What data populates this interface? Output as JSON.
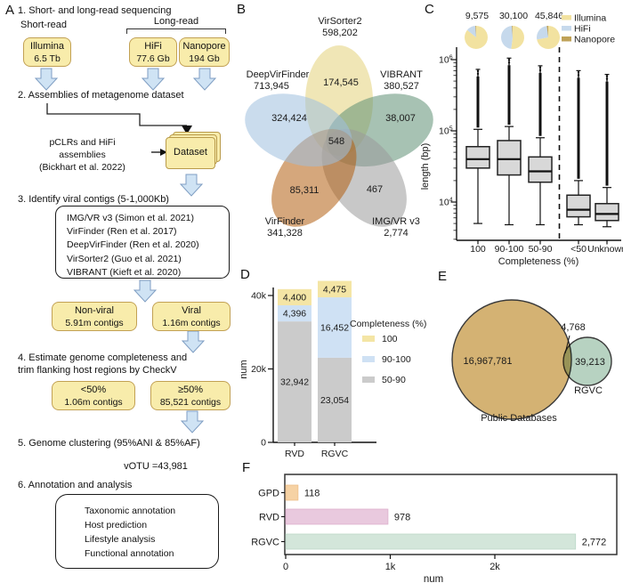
{
  "panels": {
    "A": {
      "label": "A",
      "step1": {
        "title": "1. Short- and long-read sequencing",
        "short_label": "Short-read",
        "long_label": "Long-read",
        "boxes": [
          {
            "name": "Illumina",
            "value": "6.5 Tb"
          },
          {
            "name": "HiFi",
            "value": "77.6 Gb"
          },
          {
            "name": "Nanopore",
            "value": "194 Gb"
          }
        ]
      },
      "step2": {
        "title": "2. Assemblies of metagenome dataset",
        "note_line1": "pCLRs and HiFi",
        "note_line2": "assemblies",
        "note_line3": "(Bickhart et al. 2022)",
        "dataset_label": "Dataset"
      },
      "step3": {
        "title": "3. Identify viral contigs (5-1,000Kb)",
        "tools": [
          "IMG/VR v3 (Simon et al. 2021)",
          "VirFinder (Ren et al. 2017)",
          "DeepVirFinder (Ren et al. 2020)",
          "VirSorter2 (Guo et al. 2021)",
          "VIBRANT (Kieft et al. 2020)"
        ],
        "nonviral_name": "Non-viral",
        "nonviral_count": "5.91m contigs",
        "viral_name": "Viral",
        "viral_count": "1.16m contigs"
      },
      "step4": {
        "line1": "4. Estimate genome completeness and",
        "line2": "trim flanking host regions by CheckV",
        "lt50_name": "<50%",
        "lt50_count": "1.06m contigs",
        "ge50_name": "≥50%",
        "ge50_count": "85,521 contigs"
      },
      "step5": {
        "title": "5. Genome clustering (95%ANI & 85%AF)",
        "votu": "vOTU =43,981"
      },
      "step6": {
        "title": "6. Annotation and analysis",
        "items": [
          "Taxonomic annotation",
          "Host prediction",
          "Lifestyle analysis",
          "Functional annotation"
        ]
      }
    },
    "B": {
      "label": "B"
    },
    "C": {
      "label": "C"
    },
    "D": {
      "label": "D"
    },
    "E": {
      "label": "E"
    },
    "F": {
      "label": "F"
    }
  },
  "chart_data": [
    {
      "id": "B",
      "type": "venn5",
      "sets": [
        {
          "name": "VirSorter2",
          "total": "598,202",
          "color": "#e3d27a"
        },
        {
          "name": "VIBRANT",
          "total": "380,527",
          "color": "#5f8f74"
        },
        {
          "name": "IMG/VR v3",
          "total": "2,774",
          "color": "#9a9a9a"
        },
        {
          "name": "VirFinder",
          "total": "341,328",
          "color": "#b35f10"
        },
        {
          "name": "DeepVirFinder",
          "total": "713,945",
          "color": "#9fc0de"
        }
      ],
      "regions": [
        {
          "region": "VirSorter2",
          "value": "174,545"
        },
        {
          "region": "DeepVirFinder",
          "value": "324,424"
        },
        {
          "region": "VIBRANT",
          "value": "38,007"
        },
        {
          "region": "center-all",
          "value": "548"
        },
        {
          "region": "VirFinder",
          "value": "85,311"
        },
        {
          "region": "IMG/VR v3",
          "value": "467"
        }
      ]
    },
    {
      "id": "C",
      "type": "boxplot",
      "ylabel": "length (bp)",
      "xlabel": "Completeness (%)",
      "yscale": "log",
      "ylim": [
        3000,
        1400000
      ],
      "categories": [
        "100",
        "90-100",
        "50-90",
        "<50",
        "Unknown"
      ],
      "separator_after_index": 2,
      "pie_series": [
        "Illumina",
        "HiFi",
        "Nanopore"
      ],
      "pies": [
        {
          "count": "9,575",
          "fractions": [
            0.86,
            0.13,
            0.01
          ]
        },
        {
          "count": "30,100",
          "fractions": [
            0.52,
            0.47,
            0.01
          ]
        },
        {
          "count": "45,846",
          "fractions": [
            0.72,
            0.26,
            0.02
          ]
        }
      ],
      "legend": [
        {
          "label": "Illumina",
          "color": "#f2e2a0"
        },
        {
          "label": "HiFi",
          "color": "#c6d9ec"
        },
        {
          "label": "Nanopore",
          "color": "#bfa258"
        }
      ],
      "yticks": [
        {
          "base": "10",
          "exp": "4",
          "value": 10000
        },
        {
          "base": "10",
          "exp": "5",
          "value": 100000
        },
        {
          "base": "10",
          "exp": "6",
          "value": 1000000
        }
      ],
      "boxes": [
        {
          "category": "100",
          "whisker_low": 5000,
          "q1": 30000,
          "median": 40000,
          "q3": 60000,
          "whisker_high": 105000,
          "outlier_max": 730000
        },
        {
          "category": "90-100",
          "whisker_low": 4800,
          "q1": 24000,
          "median": 40000,
          "q3": 73000,
          "whisker_high": 115000,
          "outlier_max": 1050000
        },
        {
          "category": "50-90",
          "whisker_low": 4800,
          "q1": 19000,
          "median": 27000,
          "q3": 43000,
          "whisker_high": 80000,
          "outlier_max": 820000
        },
        {
          "category": "<50",
          "whisker_low": 4800,
          "q1": 6200,
          "median": 7800,
          "q3": 12500,
          "whisker_high": 20000,
          "outlier_max": 700000
        },
        {
          "category": "Unknown",
          "whisker_low": 4500,
          "q1": 5500,
          "median": 6800,
          "q3": 9500,
          "whisker_high": 16000,
          "outlier_max": 620000
        }
      ]
    },
    {
      "id": "D",
      "type": "stacked_bar",
      "ylabel": "num",
      "categories": [
        "RVD",
        "RGVC"
      ],
      "yticks": [
        {
          "label": "0",
          "value": 0
        },
        {
          "label": "20k",
          "value": 20000
        },
        {
          "label": "40k",
          "value": 40000
        }
      ],
      "legend_title": "Completeness (%)",
      "legend_order": [
        "100",
        "90-100",
        "50-90"
      ],
      "series": [
        {
          "name": "50-90",
          "color": "#cbcbcb",
          "values": [
            32942,
            23054
          ],
          "labels": [
            "32,942",
            "23,054"
          ]
        },
        {
          "name": "90-100",
          "color": "#cfe1f4",
          "values": [
            4396,
            16452
          ],
          "labels": [
            "4,396",
            "16,452"
          ]
        },
        {
          "name": "100",
          "color": "#f4e5a5",
          "values": [
            4400,
            4475
          ],
          "labels": [
            "4,400",
            "4,475"
          ]
        }
      ]
    },
    {
      "id": "E",
      "type": "venn2",
      "left": {
        "name": "Public Databases",
        "value": "16,967,781",
        "color": "#d4b273"
      },
      "right": {
        "name": "RGVC",
        "value": "39,213",
        "color": "#b7d2c1"
      },
      "overlap": "4,768"
    },
    {
      "id": "F",
      "type": "bar_h",
      "xlabel": "num",
      "categories": [
        "GPD",
        "RVD",
        "RGVC"
      ],
      "values": [
        118,
        978,
        2772
      ],
      "value_labels": [
        "118",
        "978",
        "2,772"
      ],
      "bar_colors": [
        "#f6d2a4",
        "#e9c9de",
        "#d3e6da"
      ],
      "bar_strokes": [
        "#eebf8a",
        "#ddb0cc",
        "#bcd9c8"
      ],
      "xticks": [
        {
          "label": "0",
          "value": 0
        },
        {
          "label": "1k",
          "value": 1000
        },
        {
          "label": "2k",
          "value": 2000
        }
      ]
    }
  ]
}
